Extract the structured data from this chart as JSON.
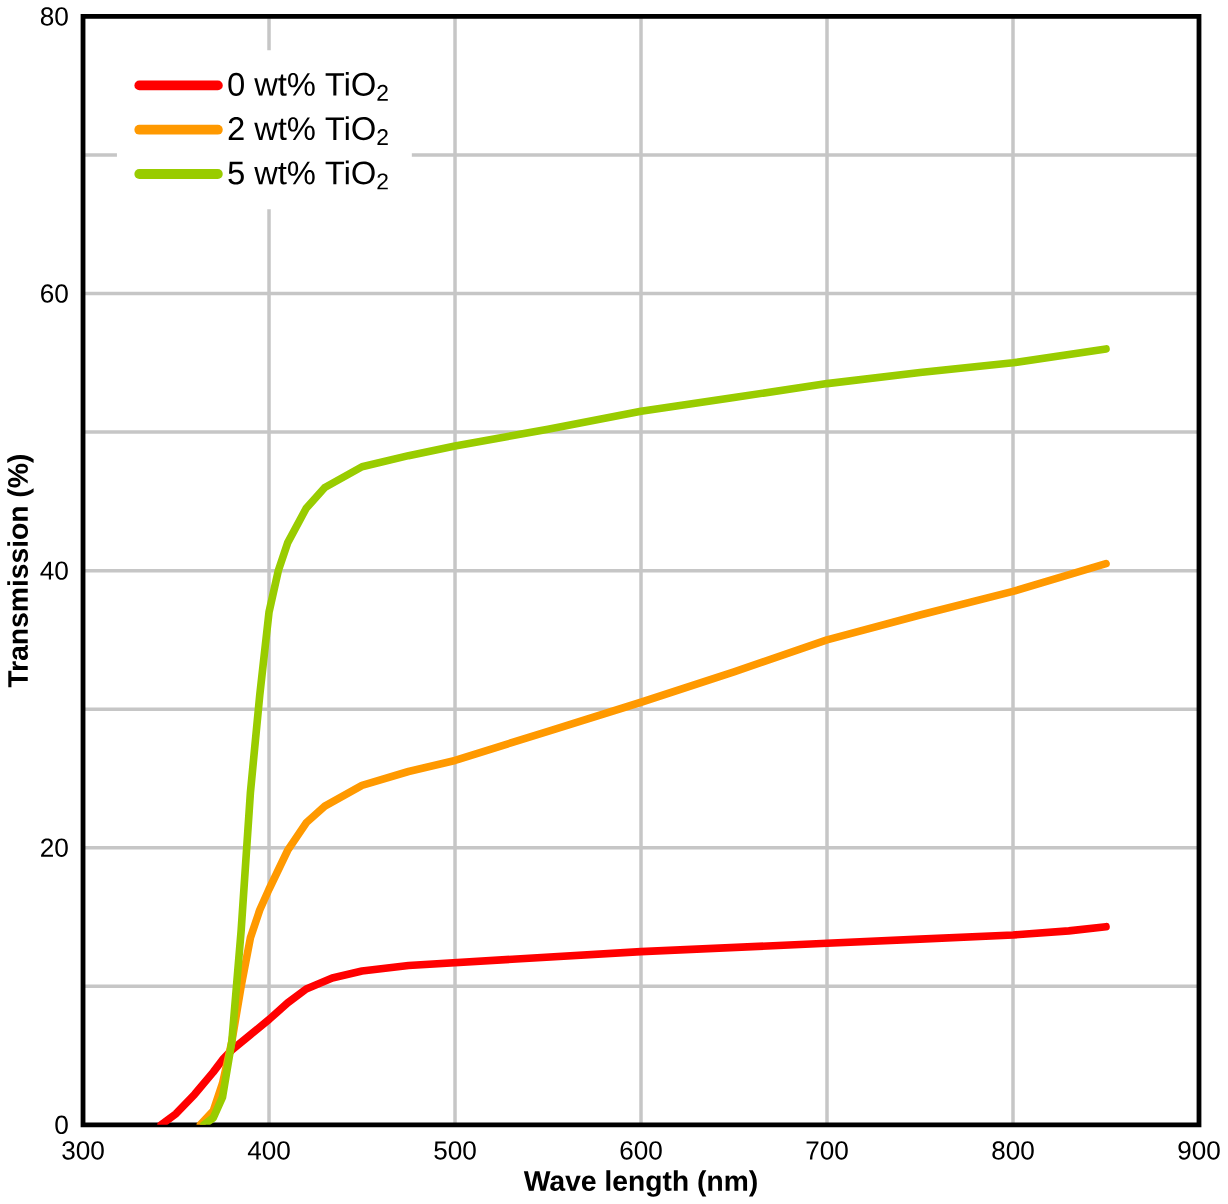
{
  "chart_data": {
    "type": "line",
    "xlabel": "Wave length (nm)",
    "ylabel": "Transmission (%)",
    "xlim": [
      300,
      900
    ],
    "xticks": [
      300,
      400,
      500,
      600,
      700,
      800,
      900
    ],
    "ylim": [
      0,
      80
    ],
    "yticks": [
      0,
      {
        "value": 10,
        "label": null
      },
      20,
      {
        "value": 30,
        "label": null
      },
      40,
      {
        "value": 50,
        "label": null
      },
      60,
      {
        "value": 70,
        "label": null
      },
      80
    ],
    "grid": true,
    "legend": "top left",
    "line_style": "solid",
    "series": [
      {
        "name": "0 wt% TiO$_{2}$",
        "color": "#ff0000",
        "x": [
          342,
          350,
          360,
          370,
          375,
          380,
          390,
          400,
          410,
          420,
          434,
          450,
          475,
          500,
          550,
          600,
          650,
          700,
          750,
          800,
          830,
          850
        ],
        "values": [
          0,
          0.8,
          2.2,
          3.8,
          4.7,
          5.4,
          6.5,
          7.6,
          8.8,
          9.8,
          10.6,
          11.1,
          11.5,
          11.7,
          12.1,
          12.5,
          12.8,
          13.1,
          13.4,
          13.7,
          14,
          14.3
        ]
      },
      {
        "name": "2 wt% TiO$_{2}$",
        "color": "#ff9900",
        "x": [
          363,
          370,
          375,
          380,
          385,
          390,
          395,
          400,
          410,
          420,
          430,
          450,
          475,
          500,
          550,
          600,
          650,
          700,
          750,
          800,
          850
        ],
        "values": [
          0,
          1,
          3,
          6,
          10,
          13.5,
          15.5,
          17,
          19.8,
          21.8,
          23,
          24.5,
          25.5,
          26.3,
          28.4,
          30.5,
          32.7,
          35,
          36.8,
          38.5,
          40.5
        ]
      },
      {
        "name": "5 wt% TiO$_{2}$",
        "color": "#99cc00",
        "x": [
          365,
          370,
          375,
          380,
          385,
          390,
          395,
          400,
          405,
          410,
          420,
          430,
          450,
          475,
          500,
          550,
          600,
          650,
          700,
          750,
          800,
          850
        ],
        "values": [
          0,
          0.5,
          2,
          6,
          14,
          24,
          31,
          37,
          40,
          42,
          44.5,
          46,
          47.5,
          48.3,
          49,
          50.2,
          51.5,
          52.5,
          53.5,
          54.3,
          55,
          56
        ]
      }
    ]
  }
}
